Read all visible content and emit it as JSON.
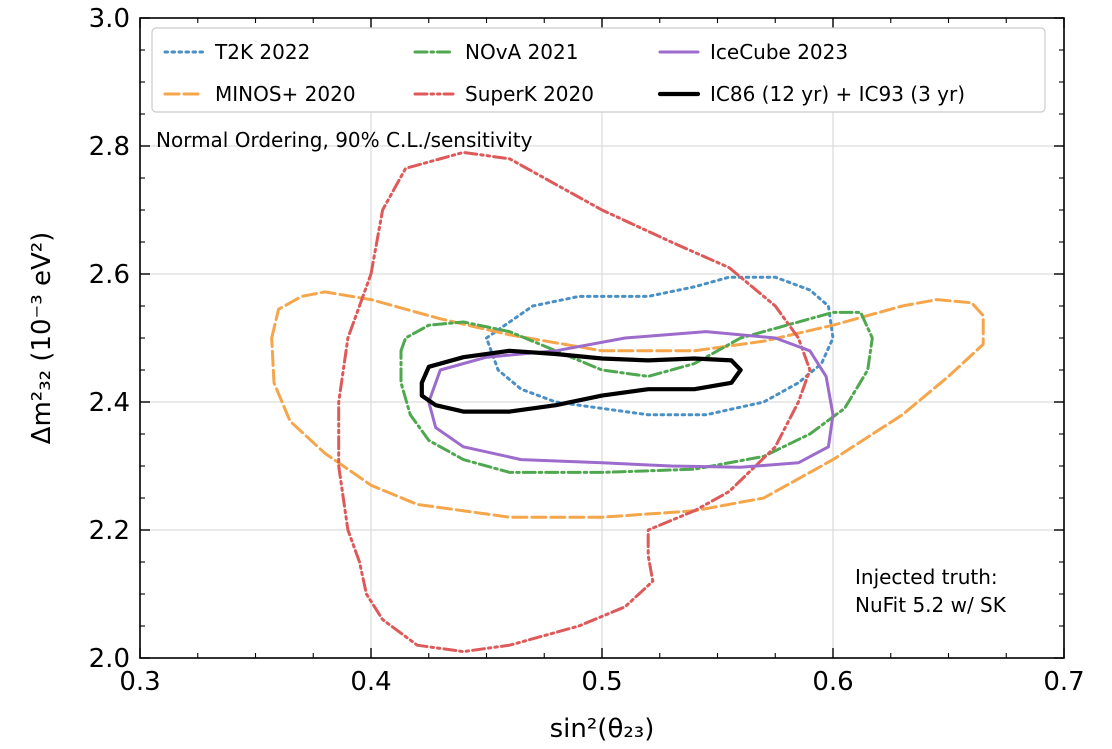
{
  "chart_data": {
    "type": "line",
    "xlabel": "sin²(θ₂₃)",
    "ylabel": "Δm²₃₂ (10⁻³ eV²)",
    "xlim": [
      0.3,
      0.7
    ],
    "ylim": [
      2.0,
      3.0
    ],
    "xticks": [
      "0.3",
      "0.4",
      "0.5",
      "0.6",
      "0.7"
    ],
    "yticks": [
      "2.0",
      "2.2",
      "2.4",
      "2.6",
      "2.8",
      "3.0"
    ],
    "grid": true,
    "legend_position": "top",
    "annotations": {
      "ordering": "Normal Ordering, 90% C.L./sensitivity",
      "truth_line1": "Injected truth:",
      "truth_line2": "NuFit 5.2 w/ SK"
    },
    "series": [
      {
        "name": "T2K 2022",
        "color": "#4a90c4",
        "style": "dotted",
        "points": [
          [
            0.45,
            2.5
          ],
          [
            0.47,
            2.55
          ],
          [
            0.49,
            2.565
          ],
          [
            0.52,
            2.565
          ],
          [
            0.54,
            2.58
          ],
          [
            0.555,
            2.595
          ],
          [
            0.575,
            2.595
          ],
          [
            0.59,
            2.575
          ],
          [
            0.598,
            2.55
          ],
          [
            0.6,
            2.5
          ],
          [
            0.595,
            2.46
          ],
          [
            0.585,
            2.43
          ],
          [
            0.57,
            2.4
          ],
          [
            0.545,
            2.38
          ],
          [
            0.52,
            2.38
          ],
          [
            0.5,
            2.39
          ],
          [
            0.48,
            2.4
          ],
          [
            0.465,
            2.42
          ],
          [
            0.455,
            2.45
          ],
          [
            0.45,
            2.5
          ]
        ]
      },
      {
        "name": "MINOS+ 2020",
        "color": "#f5a54a",
        "style": "dashed",
        "points": [
          [
            0.357,
            2.5
          ],
          [
            0.36,
            2.545
          ],
          [
            0.37,
            2.565
          ],
          [
            0.38,
            2.572
          ],
          [
            0.4,
            2.56
          ],
          [
            0.43,
            2.53
          ],
          [
            0.46,
            2.505
          ],
          [
            0.5,
            2.48
          ],
          [
            0.54,
            2.48
          ],
          [
            0.57,
            2.495
          ],
          [
            0.6,
            2.52
          ],
          [
            0.63,
            2.55
          ],
          [
            0.645,
            2.56
          ],
          [
            0.66,
            2.555
          ],
          [
            0.665,
            2.535
          ],
          [
            0.665,
            2.49
          ],
          [
            0.65,
            2.44
          ],
          [
            0.63,
            2.38
          ],
          [
            0.6,
            2.31
          ],
          [
            0.57,
            2.25
          ],
          [
            0.54,
            2.23
          ],
          [
            0.5,
            2.22
          ],
          [
            0.46,
            2.22
          ],
          [
            0.42,
            2.24
          ],
          [
            0.4,
            2.27
          ],
          [
            0.38,
            2.32
          ],
          [
            0.365,
            2.37
          ],
          [
            0.358,
            2.43
          ],
          [
            0.357,
            2.5
          ]
        ]
      },
      {
        "name": "NOvA 2021",
        "color": "#4fa84f",
        "style": "dashdot",
        "points": [
          [
            0.413,
            2.48
          ],
          [
            0.415,
            2.5
          ],
          [
            0.425,
            2.52
          ],
          [
            0.44,
            2.525
          ],
          [
            0.46,
            2.51
          ],
          [
            0.48,
            2.48
          ],
          [
            0.5,
            2.45
          ],
          [
            0.52,
            2.44
          ],
          [
            0.54,
            2.46
          ],
          [
            0.56,
            2.5
          ],
          [
            0.58,
            2.52
          ],
          [
            0.6,
            2.54
          ],
          [
            0.612,
            2.54
          ],
          [
            0.617,
            2.5
          ],
          [
            0.615,
            2.45
          ],
          [
            0.605,
            2.39
          ],
          [
            0.59,
            2.35
          ],
          [
            0.57,
            2.315
          ],
          [
            0.54,
            2.295
          ],
          [
            0.5,
            2.29
          ],
          [
            0.46,
            2.29
          ],
          [
            0.44,
            2.31
          ],
          [
            0.425,
            2.34
          ],
          [
            0.417,
            2.38
          ],
          [
            0.413,
            2.43
          ],
          [
            0.413,
            2.48
          ]
        ]
      },
      {
        "name": "SuperK 2020",
        "color": "#de5a5a",
        "style": "dashdotdot",
        "points": [
          [
            0.4,
            2.6
          ],
          [
            0.405,
            2.7
          ],
          [
            0.415,
            2.765
          ],
          [
            0.44,
            2.79
          ],
          [
            0.46,
            2.78
          ],
          [
            0.48,
            2.74
          ],
          [
            0.5,
            2.7
          ],
          [
            0.53,
            2.65
          ],
          [
            0.555,
            2.61
          ],
          [
            0.575,
            2.55
          ],
          [
            0.585,
            2.5
          ],
          [
            0.59,
            2.45
          ],
          [
            0.585,
            2.4
          ],
          [
            0.575,
            2.33
          ],
          [
            0.555,
            2.26
          ],
          [
            0.54,
            2.23
          ],
          [
            0.52,
            2.2
          ],
          [
            0.52,
            2.16
          ],
          [
            0.522,
            2.12
          ],
          [
            0.51,
            2.08
          ],
          [
            0.49,
            2.05
          ],
          [
            0.46,
            2.02
          ],
          [
            0.44,
            2.01
          ],
          [
            0.42,
            2.02
          ],
          [
            0.405,
            2.06
          ],
          [
            0.398,
            2.1
          ],
          [
            0.395,
            2.15
          ],
          [
            0.39,
            2.2
          ],
          [
            0.386,
            2.3
          ],
          [
            0.386,
            2.4
          ],
          [
            0.39,
            2.5
          ],
          [
            0.4,
            2.6
          ]
        ]
      },
      {
        "name": "IceCube 2023",
        "color": "#9d6bcc",
        "style": "solid",
        "points": [
          [
            0.425,
            2.4
          ],
          [
            0.43,
            2.45
          ],
          [
            0.45,
            2.47
          ],
          [
            0.48,
            2.48
          ],
          [
            0.51,
            2.5
          ],
          [
            0.545,
            2.51
          ],
          [
            0.575,
            2.5
          ],
          [
            0.59,
            2.48
          ],
          [
            0.597,
            2.44
          ],
          [
            0.6,
            2.38
          ],
          [
            0.598,
            2.33
          ],
          [
            0.585,
            2.305
          ],
          [
            0.56,
            2.298
          ],
          [
            0.53,
            2.3
          ],
          [
            0.5,
            2.305
          ],
          [
            0.465,
            2.31
          ],
          [
            0.44,
            2.33
          ],
          [
            0.428,
            2.36
          ],
          [
            0.425,
            2.4
          ]
        ]
      },
      {
        "name": "IC86 (12 yr) + IC93 (3 yr)",
        "color": "#000000",
        "style": "solid",
        "points": [
          [
            0.422,
            2.43
          ],
          [
            0.425,
            2.455
          ],
          [
            0.44,
            2.47
          ],
          [
            0.46,
            2.48
          ],
          [
            0.48,
            2.475
          ],
          [
            0.5,
            2.468
          ],
          [
            0.52,
            2.465
          ],
          [
            0.54,
            2.468
          ],
          [
            0.556,
            2.465
          ],
          [
            0.56,
            2.45
          ],
          [
            0.556,
            2.43
          ],
          [
            0.54,
            2.42
          ],
          [
            0.52,
            2.42
          ],
          [
            0.5,
            2.41
          ],
          [
            0.48,
            2.395
          ],
          [
            0.46,
            2.385
          ],
          [
            0.44,
            2.385
          ],
          [
            0.428,
            2.395
          ],
          [
            0.422,
            2.41
          ],
          [
            0.422,
            2.43
          ]
        ]
      }
    ]
  }
}
